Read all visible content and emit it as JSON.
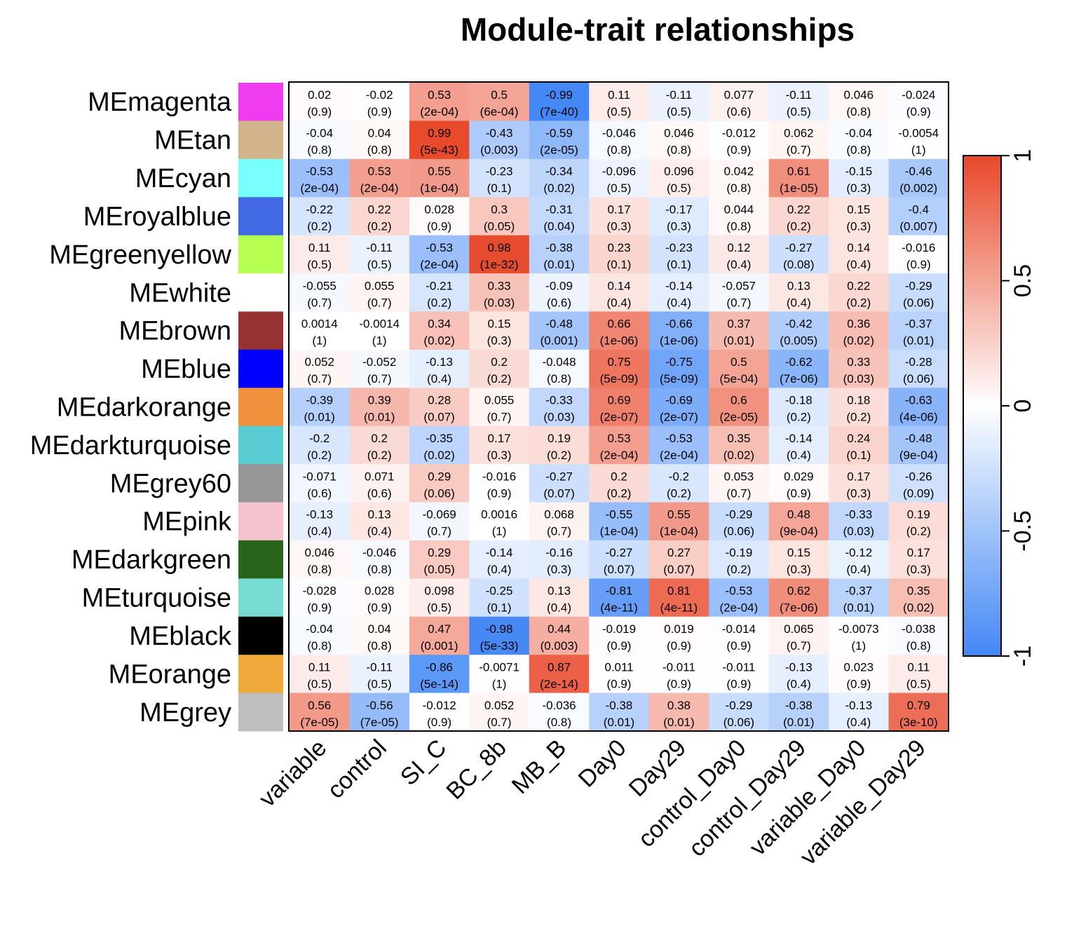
{
  "chart_data": {
    "type": "heatmap",
    "title": "Module-trait relationships",
    "rows": [
      {
        "label": "MEmagenta",
        "color": "#f03cf0"
      },
      {
        "label": "MEtan",
        "color": "#d2b48c"
      },
      {
        "label": "MEcyan",
        "color": "#78ffff"
      },
      {
        "label": "MEroyalblue",
        "color": "#4169e1"
      },
      {
        "label": "MEgreenyellow",
        "color": "#b4ff50"
      },
      {
        "label": "MEwhite",
        "color": "#ffffff"
      },
      {
        "label": "MEbrown",
        "color": "#963232"
      },
      {
        "label": "MEblue",
        "color": "#0000ff"
      },
      {
        "label": "MEdarkorange",
        "color": "#f0913c"
      },
      {
        "label": "MEdarkturquoise",
        "color": "#5acdd2"
      },
      {
        "label": "MEgrey60",
        "color": "#969696"
      },
      {
        "label": "MEpink",
        "color": "#f5c3cd"
      },
      {
        "label": "MEdarkgreen",
        "color": "#286419"
      },
      {
        "label": "MEturquoise",
        "color": "#78dcd2"
      },
      {
        "label": "MEblack",
        "color": "#000000"
      },
      {
        "label": "MEorange",
        "color": "#f0aa3c"
      },
      {
        "label": "MEgrey",
        "color": "#bebebe"
      }
    ],
    "columns": [
      "variable",
      "control",
      "SI_C",
      "BC_8b",
      "MB_B",
      "Day0",
      "Day29",
      "control_Day0",
      "control_Day29",
      "variable_Day0",
      "variable_Day29"
    ],
    "values": [
      [
        "0.02",
        "-0.02",
        "0.53",
        "0.5",
        "-0.99",
        "0.11",
        "-0.11",
        "0.077",
        "-0.11",
        "0.046",
        "-0.024"
      ],
      [
        "-0.04",
        "0.04",
        "0.99",
        "-0.43",
        "-0.59",
        "-0.046",
        "0.046",
        "-0.012",
        "0.062",
        "-0.04",
        "-0.0054"
      ],
      [
        "-0.53",
        "0.53",
        "0.55",
        "-0.23",
        "-0.34",
        "-0.096",
        "0.096",
        "0.042",
        "0.61",
        "-0.15",
        "-0.46"
      ],
      [
        "-0.22",
        "0.22",
        "0.028",
        "0.3",
        "-0.31",
        "0.17",
        "-0.17",
        "0.044",
        "0.22",
        "0.15",
        "-0.4"
      ],
      [
        "0.11",
        "-0.11",
        "-0.53",
        "0.98",
        "-0.38",
        "0.23",
        "-0.23",
        "0.12",
        "-0.27",
        "0.14",
        "-0.016"
      ],
      [
        "-0.055",
        "0.055",
        "-0.21",
        "0.33",
        "-0.09",
        "0.14",
        "-0.14",
        "-0.057",
        "0.13",
        "0.22",
        "-0.29"
      ],
      [
        "0.0014",
        "-0.0014",
        "0.34",
        "0.15",
        "-0.48",
        "0.66",
        "-0.66",
        "0.37",
        "-0.42",
        "0.36",
        "-0.37"
      ],
      [
        "0.052",
        "-0.052",
        "-0.13",
        "0.2",
        "-0.048",
        "0.75",
        "-0.75",
        "0.5",
        "-0.62",
        "0.33",
        "-0.28"
      ],
      [
        "-0.39",
        "0.39",
        "0.28",
        "0.055",
        "-0.33",
        "0.69",
        "-0.69",
        "0.6",
        "-0.18",
        "0.18",
        "-0.63"
      ],
      [
        "-0.2",
        "0.2",
        "-0.35",
        "0.17",
        "0.19",
        "0.53",
        "-0.53",
        "0.35",
        "-0.14",
        "0.24",
        "-0.48"
      ],
      [
        "-0.071",
        "0.071",
        "0.29",
        "-0.016",
        "-0.27",
        "0.2",
        "-0.2",
        "0.053",
        "0.029",
        "0.17",
        "-0.26"
      ],
      [
        "-0.13",
        "0.13",
        "-0.069",
        "0.0016",
        "0.068",
        "-0.55",
        "0.55",
        "-0.29",
        "0.48",
        "-0.33",
        "0.19"
      ],
      [
        "0.046",
        "-0.046",
        "0.29",
        "-0.14",
        "-0.16",
        "-0.27",
        "0.27",
        "-0.19",
        "0.15",
        "-0.12",
        "0.17"
      ],
      [
        "-0.028",
        "0.028",
        "0.098",
        "-0.25",
        "0.13",
        "-0.81",
        "0.81",
        "-0.53",
        "0.62",
        "-0.37",
        "0.35"
      ],
      [
        "-0.04",
        "0.04",
        "0.47",
        "-0.98",
        "0.44",
        "-0.019",
        "0.019",
        "-0.014",
        "0.065",
        "-0.0073",
        "-0.038"
      ],
      [
        "0.11",
        "-0.11",
        "-0.86",
        "-0.0071",
        "0.87",
        "0.011",
        "-0.011",
        "-0.011",
        "-0.13",
        "0.023",
        "0.11"
      ],
      [
        "0.56",
        "-0.56",
        "-0.012",
        "0.052",
        "-0.036",
        "-0.38",
        "0.38",
        "-0.29",
        "-0.38",
        "-0.13",
        "0.79"
      ]
    ],
    "pvalues": [
      [
        "(0.9)",
        "(0.9)",
        "(2e-04)",
        "(6e-04)",
        "(7e-40)",
        "(0.5)",
        "(0.5)",
        "(0.6)",
        "(0.5)",
        "(0.8)",
        "(0.9)"
      ],
      [
        "(0.8)",
        "(0.8)",
        "(5e-43)",
        "(0.003)",
        "(2e-05)",
        "(0.8)",
        "(0.8)",
        "(0.9)",
        "(0.7)",
        "(0.8)",
        "(1)"
      ],
      [
        "(2e-04)",
        "(2e-04)",
        "(1e-04)",
        "(0.1)",
        "(0.02)",
        "(0.5)",
        "(0.5)",
        "(0.8)",
        "(1e-05)",
        "(0.3)",
        "(0.002)"
      ],
      [
        "(0.2)",
        "(0.2)",
        "(0.9)",
        "(0.05)",
        "(0.04)",
        "(0.3)",
        "(0.3)",
        "(0.8)",
        "(0.2)",
        "(0.3)",
        "(0.007)"
      ],
      [
        "(0.5)",
        "(0.5)",
        "(2e-04)",
        "(1e-32)",
        "(0.01)",
        "(0.1)",
        "(0.1)",
        "(0.4)",
        "(0.08)",
        "(0.4)",
        "(0.9)"
      ],
      [
        "(0.7)",
        "(0.7)",
        "(0.2)",
        "(0.03)",
        "(0.6)",
        "(0.4)",
        "(0.4)",
        "(0.7)",
        "(0.4)",
        "(0.2)",
        "(0.06)"
      ],
      [
        "(1)",
        "(1)",
        "(0.02)",
        "(0.3)",
        "(0.001)",
        "(1e-06)",
        "(1e-06)",
        "(0.01)",
        "(0.005)",
        "(0.02)",
        "(0.01)"
      ],
      [
        "(0.7)",
        "(0.7)",
        "(0.4)",
        "(0.2)",
        "(0.8)",
        "(5e-09)",
        "(5e-09)",
        "(5e-04)",
        "(7e-06)",
        "(0.03)",
        "(0.06)"
      ],
      [
        "(0.01)",
        "(0.01)",
        "(0.07)",
        "(0.7)",
        "(0.03)",
        "(2e-07)",
        "(2e-07)",
        "(2e-05)",
        "(0.2)",
        "(0.2)",
        "(4e-06)"
      ],
      [
        "(0.2)",
        "(0.2)",
        "(0.02)",
        "(0.3)",
        "(0.2)",
        "(2e-04)",
        "(2e-04)",
        "(0.02)",
        "(0.4)",
        "(0.1)",
        "(9e-04)"
      ],
      [
        "(0.6)",
        "(0.6)",
        "(0.06)",
        "(0.9)",
        "(0.07)",
        "(0.2)",
        "(0.2)",
        "(0.7)",
        "(0.9)",
        "(0.3)",
        "(0.09)"
      ],
      [
        "(0.4)",
        "(0.4)",
        "(0.7)",
        "(1)",
        "(0.7)",
        "(1e-04)",
        "(1e-04)",
        "(0.06)",
        "(9e-04)",
        "(0.03)",
        "(0.2)"
      ],
      [
        "(0.8)",
        "(0.8)",
        "(0.05)",
        "(0.4)",
        "(0.3)",
        "(0.07)",
        "(0.07)",
        "(0.2)",
        "(0.3)",
        "(0.4)",
        "(0.3)"
      ],
      [
        "(0.9)",
        "(0.9)",
        "(0.5)",
        "(0.1)",
        "(0.4)",
        "(4e-11)",
        "(4e-11)",
        "(2e-04)",
        "(7e-06)",
        "(0.01)",
        "(0.02)"
      ],
      [
        "(0.8)",
        "(0.8)",
        "(0.001)",
        "(5e-33)",
        "(0.003)",
        "(0.9)",
        "(0.9)",
        "(0.9)",
        "(0.7)",
        "(1)",
        "(0.8)"
      ],
      [
        "(0.5)",
        "(0.5)",
        "(5e-14)",
        "(1)",
        "(2e-14)",
        "(0.9)",
        "(0.9)",
        "(0.9)",
        "(0.4)",
        "(0.9)",
        "(0.5)"
      ],
      [
        "(7e-05)",
        "(7e-05)",
        "(0.9)",
        "(0.7)",
        "(0.8)",
        "(0.01)",
        "(0.01)",
        "(0.06)",
        "(0.01)",
        "(0.4)",
        "(3e-10)"
      ]
    ],
    "colorscale": {
      "min": -1,
      "max": 1,
      "low_color": "#4287f5",
      "mid_color": "#ffffff",
      "high_color": "#e8482a",
      "ticks": [
        "-1",
        "-0.5",
        "0",
        "0.5",
        "1"
      ]
    }
  }
}
